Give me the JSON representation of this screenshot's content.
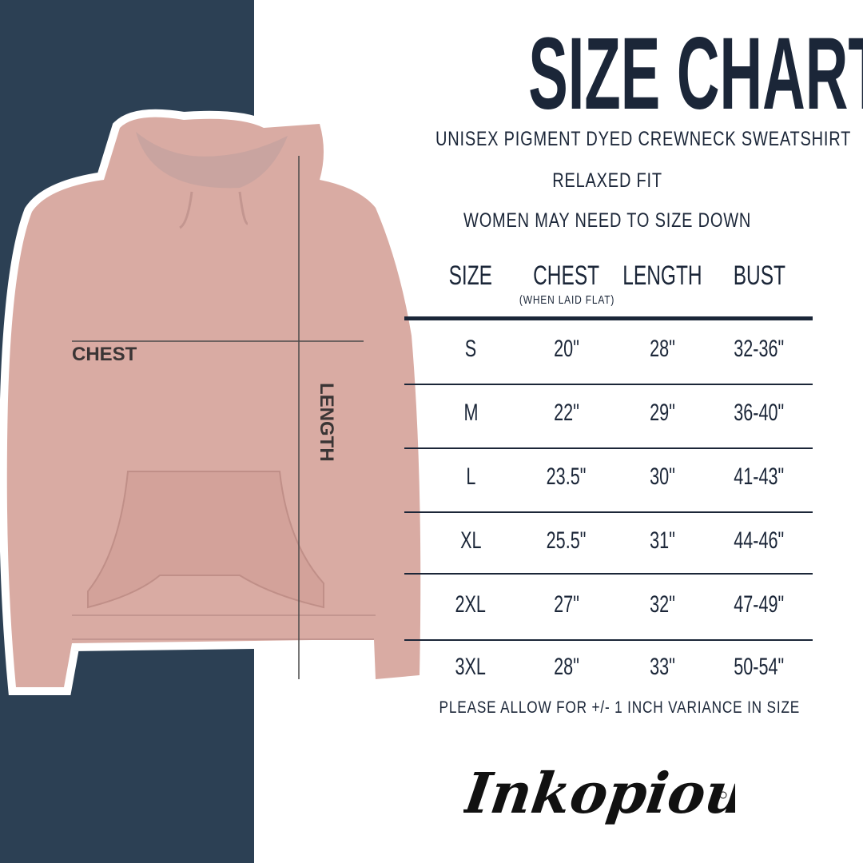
{
  "title": "SIZE CHART",
  "subtitle": "UNISEX PIGMENT DYED CREWNECK SWEATSHIRT",
  "fit": "RELAXED FIT",
  "advice": "WOMEN MAY NEED TO SIZE DOWN",
  "diagram": {
    "chest_label": "CHEST",
    "length_label": "LENGTH"
  },
  "table": {
    "headers": [
      "SIZE",
      "CHEST",
      "LENGTH",
      "BUST"
    ],
    "chest_note": "(WHEN LAID FLAT)",
    "rows": [
      [
        "S",
        "20\"",
        "28\"",
        "32-36\""
      ],
      [
        "M",
        "22\"",
        "29\"",
        "36-40\""
      ],
      [
        "L",
        "23.5\"",
        "30\"",
        "41-43\""
      ],
      [
        "XL",
        "25.5\"",
        "31\"",
        "44-46\""
      ],
      [
        "2XL",
        "27\"",
        "32\"",
        "47-49\""
      ],
      [
        "3XL",
        "28\"",
        "33\"",
        "50-54\""
      ]
    ]
  },
  "footer": "PLEASE ALLOW FOR +/- 1 INCH VARIANCE IN SIZE",
  "logo": "Inkopious",
  "colors": {
    "panel": "#2c4054",
    "text": "#1b2638",
    "hoodie": "#d9aba3"
  }
}
